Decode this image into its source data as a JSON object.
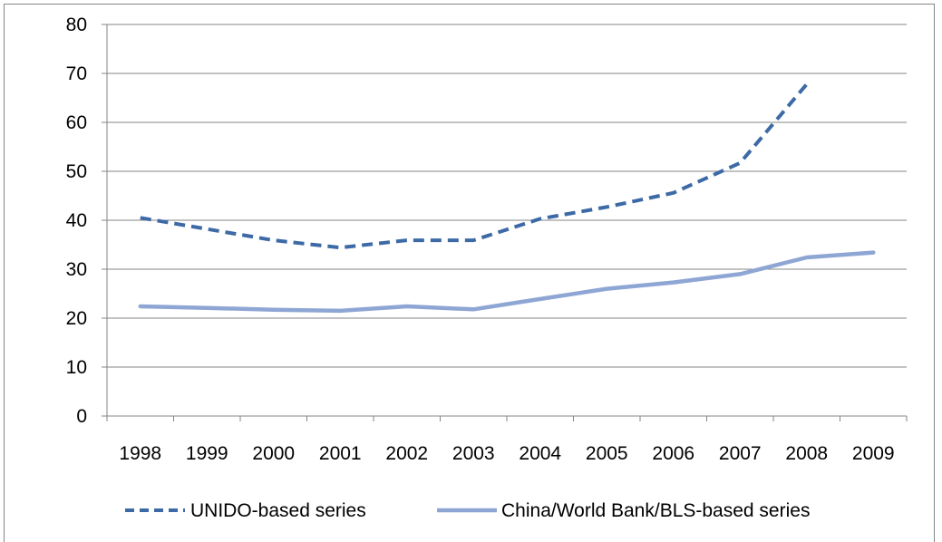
{
  "chart_data": {
    "type": "line",
    "title": "",
    "xlabel": "",
    "ylabel": "",
    "categories": [
      "1998",
      "1999",
      "2000",
      "2001",
      "2002",
      "2003",
      "2004",
      "2005",
      "2006",
      "2007",
      "2008",
      "2009"
    ],
    "ylim": [
      0,
      80
    ],
    "yticks": [
      0,
      10,
      20,
      30,
      40,
      50,
      60,
      70,
      80
    ],
    "grid": true,
    "legend_position": "bottom",
    "series": [
      {
        "name": "UNIDO-based series",
        "style": "dashed",
        "color": "#3D6AA6",
        "values": [
          40.5,
          38.2,
          35.9,
          34.4,
          35.9,
          35.9,
          40.3,
          42.7,
          45.6,
          51.7,
          67.8,
          null
        ]
      },
      {
        "name": "China/World Bank/BLS-based series",
        "style": "solid",
        "color": "#8EA6D4",
        "values": [
          22.4,
          22.1,
          21.7,
          21.5,
          22.4,
          21.8,
          23.9,
          26.0,
          27.3,
          29.0,
          32.4,
          33.4
        ]
      }
    ]
  }
}
